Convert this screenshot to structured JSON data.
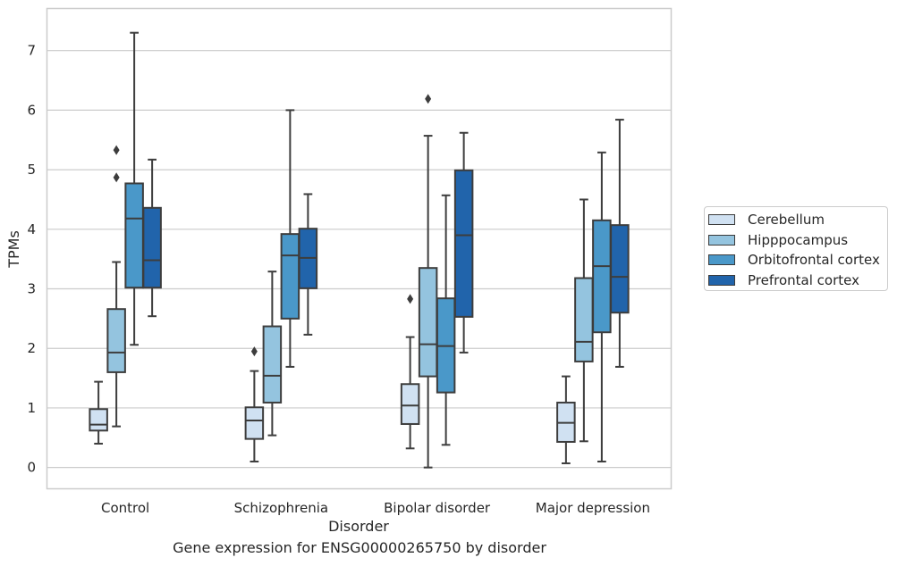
{
  "caption": "Gene expression for ENSG00000265750 by disorder",
  "chart_data": {
    "type": "boxplot",
    "xlabel": "Disorder",
    "ylabel": "TPMs",
    "ylim": [
      -0.35,
      7.7
    ],
    "yticks": [
      0,
      1,
      2,
      3,
      4,
      5,
      6,
      7
    ],
    "grid": "horizontal",
    "legend_position": "right",
    "categories": [
      "Control",
      "Schizophrenia",
      "Bipolar disorder",
      "Major depression"
    ],
    "series": [
      {
        "name": "Cerebellum",
        "color": "#d0e1f2",
        "boxes": [
          {
            "whislo": 0.4,
            "q1": 0.62,
            "med": 0.72,
            "q3": 0.98,
            "whishi": 1.44,
            "fliers": []
          },
          {
            "whislo": 0.1,
            "q1": 0.48,
            "med": 0.79,
            "q3": 1.01,
            "whishi": 1.62,
            "fliers": [
              1.95
            ]
          },
          {
            "whislo": 0.32,
            "q1": 0.73,
            "med": 1.04,
            "q3": 1.4,
            "whishi": 2.19,
            "fliers": [
              2.83
            ]
          },
          {
            "whislo": 0.07,
            "q1": 0.43,
            "med": 0.75,
            "q3": 1.09,
            "whishi": 1.53,
            "fliers": []
          }
        ]
      },
      {
        "name": "Hipppocampus",
        "color": "#94c4df",
        "boxes": [
          {
            "whislo": 0.69,
            "q1": 1.6,
            "med": 1.93,
            "q3": 2.66,
            "whishi": 3.45,
            "fliers": [
              4.87,
              5.33
            ]
          },
          {
            "whislo": 0.54,
            "q1": 1.09,
            "med": 1.54,
            "q3": 2.37,
            "whishi": 3.29,
            "fliers": []
          },
          {
            "whislo": 0.0,
            "q1": 1.53,
            "med": 2.07,
            "q3": 3.35,
            "whishi": 5.57,
            "fliers": [
              6.19
            ]
          },
          {
            "whislo": 0.44,
            "q1": 1.78,
            "med": 2.11,
            "q3": 3.18,
            "whishi": 4.5,
            "fliers": []
          }
        ]
      },
      {
        "name": "Orbitofrontal cortex",
        "color": "#4a98c9",
        "boxes": [
          {
            "whislo": 2.06,
            "q1": 3.02,
            "med": 4.18,
            "q3": 4.77,
            "whishi": 7.3,
            "fliers": []
          },
          {
            "whislo": 1.69,
            "q1": 2.5,
            "med": 3.56,
            "q3": 3.92,
            "whishi": 6.0,
            "fliers": []
          },
          {
            "whislo": 0.38,
            "q1": 1.26,
            "med": 2.04,
            "q3": 2.84,
            "whishi": 4.57,
            "fliers": []
          },
          {
            "whislo": 0.1,
            "q1": 2.27,
            "med": 3.38,
            "q3": 4.15,
            "whishi": 5.29,
            "fliers": []
          }
        ]
      },
      {
        "name": "Prefrontal cortex",
        "color": "#2164ab",
        "boxes": [
          {
            "whislo": 2.54,
            "q1": 3.02,
            "med": 3.48,
            "q3": 4.36,
            "whishi": 5.17,
            "fliers": []
          },
          {
            "whislo": 2.23,
            "q1": 3.01,
            "med": 3.52,
            "q3": 4.01,
            "whishi": 4.59,
            "fliers": []
          },
          {
            "whislo": 1.93,
            "q1": 2.53,
            "med": 3.9,
            "q3": 4.99,
            "whishi": 5.62,
            "fliers": []
          },
          {
            "whislo": 1.69,
            "q1": 2.6,
            "med": 3.2,
            "q3": 4.07,
            "whishi": 5.84,
            "fliers": []
          }
        ]
      }
    ]
  }
}
